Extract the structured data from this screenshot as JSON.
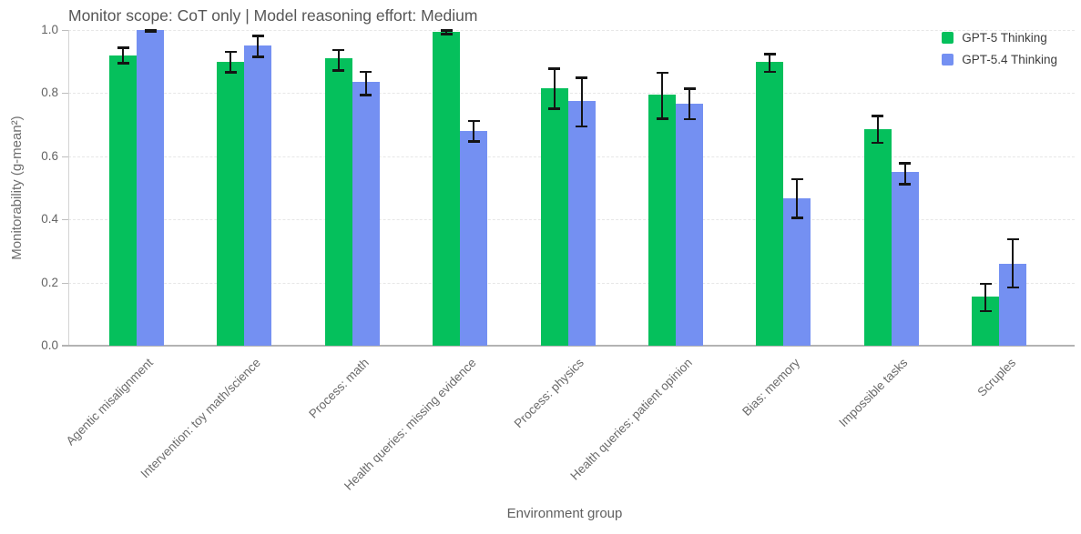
{
  "title": "Monitor scope: CoT only | Model reasoning effort: Medium",
  "axes": {
    "x_title": "Environment group",
    "y_title": "Monitorability (g-mean²)"
  },
  "legend": {
    "items": [
      {
        "label": "GPT-5 Thinking",
        "color": "#05c05c"
      },
      {
        "label": "GPT-5.4 Thinking",
        "color": "#7490f2"
      }
    ]
  },
  "chart_data": {
    "type": "bar",
    "title": "Monitor scope: CoT only | Model reasoning effort: Medium",
    "xlabel": "Environment group",
    "ylabel": "Monitorability (g-mean²)",
    "ylim": [
      0.0,
      1.0
    ],
    "yticks": [
      0.0,
      0.2,
      0.4,
      0.6,
      0.8,
      1.0
    ],
    "grid": "horizontal-dashed",
    "legend_position": "top-right",
    "error_bars": true,
    "error_bar_color": "#141414",
    "categories": [
      "Agentic misalignment",
      "Intervention: toy math/science",
      "Process: math",
      "Health queries: missing evidence",
      "Process: physics",
      "Health queries: patient opinion",
      "Bias: memory",
      "Impossible tasks",
      "Scruples"
    ],
    "series": [
      {
        "name": "GPT-5 Thinking",
        "color": "#05c05c",
        "values": [
          0.92,
          0.9,
          0.91,
          0.995,
          0.815,
          0.795,
          0.9,
          0.685,
          0.155
        ],
        "error_low": [
          0.895,
          0.867,
          0.872,
          0.988,
          0.752,
          0.72,
          0.868,
          0.643,
          0.11
        ],
        "error_high": [
          0.945,
          0.932,
          0.938,
          1.0,
          0.878,
          0.865,
          0.925,
          0.728,
          0.197
        ]
      },
      {
        "name": "GPT-5.4 Thinking",
        "color": "#7490f2",
        "values": [
          1.0,
          0.95,
          0.835,
          0.68,
          0.775,
          0.768,
          0.468,
          0.55,
          0.26
        ],
        "error_low": [
          0.995,
          0.915,
          0.795,
          0.648,
          0.695,
          0.718,
          0.405,
          0.512,
          0.185
        ],
        "error_high": [
          1.0,
          0.982,
          0.868,
          0.712,
          0.85,
          0.815,
          0.528,
          0.578,
          0.338
        ]
      }
    ]
  }
}
